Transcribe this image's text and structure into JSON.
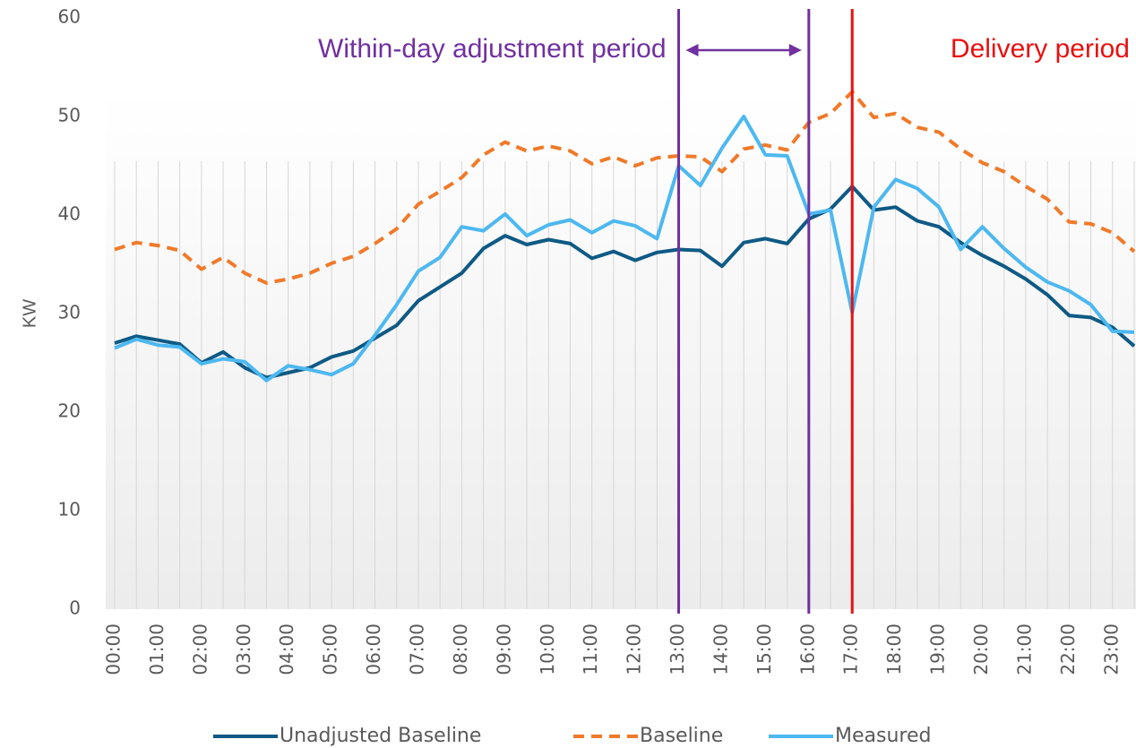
{
  "chart_data": {
    "type": "line",
    "ylabel": "KW",
    "categories": [
      "00:00",
      null,
      "01:00",
      null,
      "02:00",
      null,
      "03:00",
      null,
      "04:00",
      null,
      "05:00",
      null,
      "06:00",
      null,
      "07:00",
      null,
      "08:00",
      null,
      "09:00",
      null,
      "10:00",
      null,
      "11:00",
      null,
      "12:00",
      null,
      "13:00",
      null,
      "14:00",
      null,
      "15:00",
      null,
      "16:00",
      null,
      "17:00",
      null,
      "18:00",
      null,
      "19:00",
      null,
      "20:00",
      null,
      "21:00",
      null,
      "22:00",
      null,
      "23:00",
      null
    ],
    "ylim": [
      0,
      60
    ],
    "yticks": [
      0,
      10,
      20,
      30,
      40,
      50,
      60
    ],
    "series": [
      {
        "name": "Unadjusted Baseline",
        "color": "#0e5a85",
        "dash": false,
        "values": [
          27,
          27.7,
          27.3,
          26.9,
          25,
          26.1,
          24.5,
          23.5,
          24,
          24.5,
          25.6,
          26.2,
          27.5,
          28.8,
          31.3,
          32.7,
          34.1,
          36.6,
          37.9,
          37,
          37.5,
          37.1,
          35.6,
          36.3,
          35.4,
          36.2,
          36.5,
          36.4,
          34.8,
          37.2,
          37.6,
          37.1,
          39.6,
          40.6,
          42.9,
          40.5,
          40.8,
          39.4,
          38.8,
          37.2,
          35.9,
          34.8,
          33.5,
          31.9,
          29.8,
          29.6,
          28.6,
          26.7
        ]
      },
      {
        "name": "Baseline",
        "color": "#f07a2a",
        "dash": true,
        "values": [
          36.5,
          37.2,
          36.9,
          36.4,
          34.5,
          35.7,
          34.1,
          33.1,
          33.5,
          34.1,
          35.1,
          35.8,
          37.1,
          38.6,
          41.1,
          42.4,
          43.8,
          46.1,
          47.4,
          46.5,
          47,
          46.5,
          45.2,
          45.9,
          45,
          45.8,
          46,
          45.9,
          44.4,
          46.7,
          47.1,
          46.6,
          49.4,
          50.3,
          52.5,
          49.9,
          50.3,
          48.9,
          48.4,
          46.7,
          45.3,
          44.4,
          42.9,
          41.6,
          39.3,
          39.1,
          38.2,
          36.3
        ]
      },
      {
        "name": "Measured",
        "color": "#4db8f0",
        "dash": false,
        "values": [
          26.5,
          27.4,
          26.8,
          26.6,
          24.9,
          25.4,
          25.1,
          23.2,
          24.7,
          24.3,
          23.8,
          24.9,
          27.8,
          30.9,
          34.3,
          35.7,
          38.8,
          38.4,
          40.1,
          37.9,
          39,
          39.5,
          38.2,
          39.4,
          38.9,
          37.6,
          45,
          43,
          46.8,
          50,
          46.1,
          46,
          40.1,
          40.5,
          30.1,
          40.8,
          43.6,
          42.7,
          40.8,
          36.5,
          38.8,
          36.6,
          34.7,
          33.2,
          32.3,
          30.9,
          28.2,
          28.1
        ]
      }
    ],
    "annotations": [
      {
        "text": "Within-day adjustment period",
        "color": "#7030a0",
        "from": "13:00",
        "to": "16:00"
      },
      {
        "text": "Delivery period",
        "color": "#e81010",
        "from": "17:00"
      }
    ]
  }
}
